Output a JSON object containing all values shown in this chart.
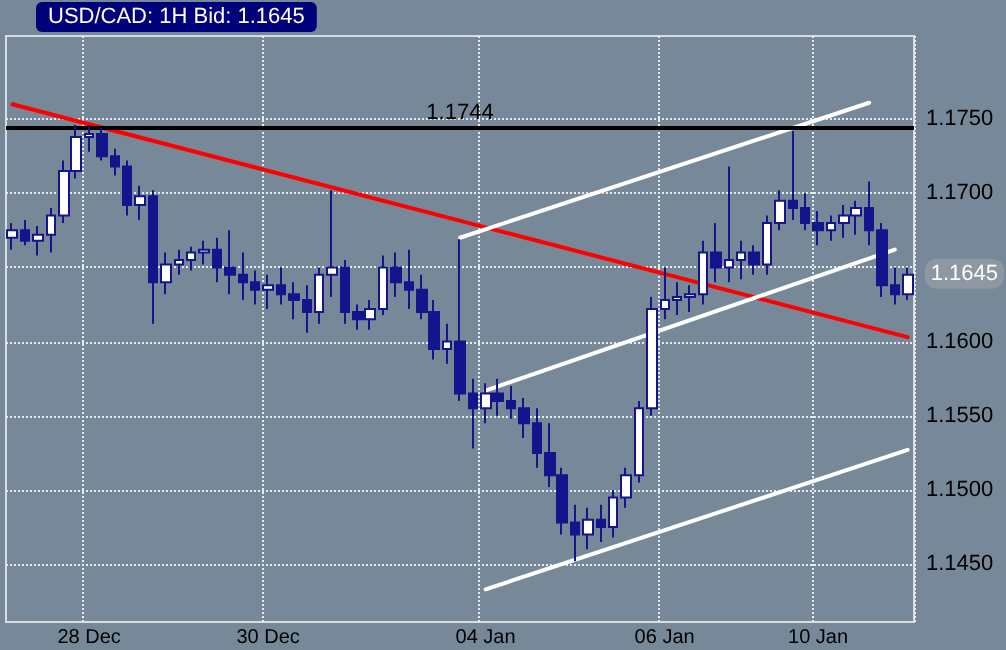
{
  "chart_data": {
    "type": "candlestick",
    "title": "USD/CAD: 1H Bid: 1.1645",
    "categories": [
      null,
      null,
      null,
      null,
      null,
      null,
      "28 Dec",
      null,
      null,
      null,
      null,
      null,
      null,
      null,
      null,
      null,
      null,
      null,
      null,
      null,
      "30 Dec",
      null,
      null,
      null,
      null,
      null,
      null,
      null,
      null,
      null,
      null,
      null,
      null,
      null,
      null,
      null,
      null,
      "04 Jan",
      null,
      null,
      null,
      null,
      null,
      null,
      null,
      null,
      null,
      null,
      null,
      null,
      null,
      "06 Jan",
      null,
      null,
      null,
      null,
      null,
      null,
      null,
      null,
      null,
      null,
      null,
      "10 Jan",
      null,
      null,
      null,
      null,
      null,
      null,
      null
    ],
    "color": "#14148c",
    "ohlc": [
      [
        1.167,
        1.168,
        1.1662,
        1.1675
      ],
      [
        1.1675,
        1.1682,
        1.1665,
        1.1668
      ],
      [
        1.1668,
        1.1678,
        1.1658,
        1.1672
      ],
      [
        1.1672,
        1.169,
        1.166,
        1.1685
      ],
      [
        1.1685,
        1.1722,
        1.168,
        1.1715
      ],
      [
        1.1715,
        1.1746,
        1.171,
        1.1738
      ],
      [
        1.1738,
        1.1746,
        1.1728,
        1.174
      ],
      [
        1.174,
        1.1744,
        1.1722,
        1.1725
      ],
      [
        1.1725,
        1.173,
        1.1712,
        1.1718
      ],
      [
        1.1718,
        1.1722,
        1.1685,
        1.1692
      ],
      [
        1.1692,
        1.1705,
        1.1682,
        1.1698
      ],
      [
        1.1698,
        1.1702,
        1.1612,
        1.164
      ],
      [
        1.164,
        1.166,
        1.1632,
        1.1652
      ],
      [
        1.1652,
        1.1662,
        1.1645,
        1.1655
      ],
      [
        1.1655,
        1.1664,
        1.1648,
        1.166
      ],
      [
        1.166,
        1.1668,
        1.1652,
        1.1662
      ],
      [
        1.1662,
        1.167,
        1.164,
        1.165
      ],
      [
        1.165,
        1.1675,
        1.1632,
        1.1645
      ],
      [
        1.1645,
        1.166,
        1.1628,
        1.164
      ],
      [
        1.164,
        1.1648,
        1.1625,
        1.1635
      ],
      [
        1.1635,
        1.1645,
        1.1622,
        1.1638
      ],
      [
        1.1638,
        1.165,
        1.1625,
        1.1632
      ],
      [
        1.1632,
        1.164,
        1.1615,
        1.1628
      ],
      [
        1.1628,
        1.1638,
        1.1606,
        1.162
      ],
      [
        1.162,
        1.165,
        1.1612,
        1.1645
      ],
      [
        1.1645,
        1.1702,
        1.163,
        1.165
      ],
      [
        1.165,
        1.1655,
        1.1612,
        1.162
      ],
      [
        1.162,
        1.1625,
        1.1608,
        1.1615
      ],
      [
        1.1615,
        1.1628,
        1.1608,
        1.1622
      ],
      [
        1.1622,
        1.1658,
        1.1618,
        1.165
      ],
      [
        1.165,
        1.166,
        1.163,
        1.164
      ],
      [
        1.164,
        1.1662,
        1.1622,
        1.1635
      ],
      [
        1.1635,
        1.1645,
        1.1615,
        1.162
      ],
      [
        1.162,
        1.1628,
        1.1588,
        1.1595
      ],
      [
        1.1595,
        1.1612,
        1.1585,
        1.16
      ],
      [
        1.16,
        1.1669,
        1.156,
        1.1565
      ],
      [
        1.1565,
        1.1575,
        1.1528,
        1.1555
      ],
      [
        1.1555,
        1.1572,
        1.1545,
        1.1565
      ],
      [
        1.1565,
        1.1575,
        1.155,
        1.156
      ],
      [
        1.156,
        1.157,
        1.1548,
        1.1555
      ],
      [
        1.1555,
        1.1562,
        1.1535,
        1.1545
      ],
      [
        1.1545,
        1.1555,
        1.1515,
        1.1525
      ],
      [
        1.1525,
        1.1545,
        1.1502,
        1.151
      ],
      [
        1.151,
        1.1515,
        1.147,
        1.1478
      ],
      [
        1.1478,
        1.149,
        1.1452,
        1.147
      ],
      [
        1.147,
        1.1488,
        1.146,
        1.148
      ],
      [
        1.148,
        1.149,
        1.1465,
        1.1475
      ],
      [
        1.1475,
        1.15,
        1.1468,
        1.1495
      ],
      [
        1.1495,
        1.1515,
        1.1488,
        1.151
      ],
      [
        1.151,
        1.156,
        1.1505,
        1.1555
      ],
      [
        1.1555,
        1.163,
        1.155,
        1.1622
      ],
      [
        1.1622,
        1.165,
        1.1615,
        1.1628
      ],
      [
        1.1628,
        1.164,
        1.1618,
        1.163
      ],
      [
        1.163,
        1.1638,
        1.162,
        1.1632
      ],
      [
        1.1632,
        1.1668,
        1.1625,
        1.166
      ],
      [
        1.166,
        1.168,
        1.164,
        1.165
      ],
      [
        1.165,
        1.1718,
        1.164,
        1.1655
      ],
      [
        1.1655,
        1.1668,
        1.1642,
        1.166
      ],
      [
        1.166,
        1.1665,
        1.1645,
        1.1652
      ],
      [
        1.1652,
        1.1685,
        1.1645,
        1.168
      ],
      [
        1.168,
        1.1702,
        1.1675,
        1.1695
      ],
      [
        1.1695,
        1.1742,
        1.1682,
        1.169
      ],
      [
        1.169,
        1.17,
        1.1675,
        1.168
      ],
      [
        1.168,
        1.1688,
        1.1665,
        1.1675
      ],
      [
        1.1675,
        1.1685,
        1.1668,
        1.168
      ],
      [
        1.168,
        1.1692,
        1.167,
        1.1685
      ],
      [
        1.1685,
        1.1695,
        1.1672,
        1.169
      ],
      [
        1.169,
        1.1708,
        1.1665,
        1.1675
      ],
      [
        1.1675,
        1.168,
        1.163,
        1.1638
      ],
      [
        1.1638,
        1.165,
        1.1625,
        1.1632
      ],
      [
        1.1632,
        1.165,
        1.1628,
        1.1645
      ]
    ],
    "series": [
      {
        "type": "line",
        "color": "#ff0000",
        "values": [
          1.176,
          null,
          null,
          null,
          null,
          null,
          null,
          null,
          null,
          null,
          null,
          null,
          null,
          null,
          null,
          null,
          null,
          null,
          null,
          null,
          null,
          null,
          null,
          null,
          null,
          null,
          null,
          null,
          null,
          null,
          null,
          null,
          null,
          null,
          null,
          null,
          null,
          null,
          null,
          null,
          null,
          null,
          null,
          null,
          null,
          null,
          null,
          null,
          null,
          null,
          null,
          null,
          null,
          null,
          null,
          null,
          null,
          null,
          null,
          null,
          null,
          null,
          null,
          null,
          null,
          null,
          null,
          null,
          null,
          null,
          1.1603
        ]
      },
      {
        "type": "line",
        "color": "#ffffff",
        "values": [
          null,
          null,
          null,
          null,
          null,
          null,
          null,
          null,
          null,
          null,
          null,
          null,
          null,
          null,
          null,
          null,
          null,
          null,
          null,
          null,
          null,
          null,
          null,
          null,
          null,
          null,
          null,
          null,
          null,
          null,
          null,
          null,
          null,
          null,
          null,
          1.167,
          null,
          null,
          null,
          null,
          null,
          null,
          null,
          null,
          null,
          null,
          null,
          null,
          null,
          null,
          null,
          null,
          null,
          null,
          null,
          null,
          null,
          null,
          null,
          null,
          null,
          null,
          null,
          null,
          null,
          null,
          null,
          1.1761,
          null,
          null,
          null
        ]
      },
      {
        "type": "line",
        "color": "#ffffff",
        "values": [
          null,
          null,
          null,
          null,
          null,
          null,
          null,
          null,
          null,
          null,
          null,
          null,
          null,
          null,
          null,
          null,
          null,
          null,
          null,
          null,
          null,
          null,
          null,
          null,
          null,
          null,
          null,
          null,
          null,
          null,
          null,
          null,
          null,
          null,
          null,
          null,
          null,
          1.1567,
          null,
          null,
          null,
          null,
          null,
          null,
          null,
          null,
          null,
          null,
          null,
          null,
          null,
          null,
          null,
          null,
          null,
          null,
          null,
          null,
          null,
          null,
          null,
          null,
          null,
          null,
          null,
          null,
          null,
          null,
          null,
          1.1662,
          null
        ]
      },
      {
        "type": "line",
        "color": "#ffffff",
        "values": [
          null,
          null,
          null,
          null,
          null,
          null,
          null,
          null,
          null,
          null,
          null,
          null,
          null,
          null,
          null,
          null,
          null,
          null,
          null,
          null,
          null,
          null,
          null,
          null,
          null,
          null,
          null,
          null,
          null,
          null,
          null,
          null,
          null,
          null,
          null,
          null,
          null,
          1.1433,
          null,
          null,
          null,
          null,
          null,
          null,
          null,
          null,
          null,
          null,
          null,
          null,
          null,
          null,
          null,
          null,
          null,
          null,
          null,
          null,
          null,
          null,
          null,
          null,
          null,
          null,
          null,
          null,
          null,
          null,
          null,
          null,
          1.1527
        ]
      }
    ],
    "ylim": [
      1.1411,
      1.1806
    ],
    "yticks": [
      {
        "value": 1.145,
        "label": "1.1450"
      },
      {
        "value": 1.15,
        "label": "1.1500"
      },
      {
        "value": 1.155,
        "label": "1.1550"
      },
      {
        "value": 1.16,
        "label": "1.1600"
      },
      {
        "value": 1.165,
        "label": null
      },
      {
        "value": 1.17,
        "label": "1.1700"
      },
      {
        "value": 1.175,
        "label": "1.1750"
      }
    ],
    "ref_lines": [
      {
        "axis": "y",
        "value": 1.1744,
        "label": "1.1744",
        "color": "#000000"
      }
    ],
    "annotations": [
      "1.1645"
    ],
    "grid": true,
    "line_style": "solid"
  }
}
